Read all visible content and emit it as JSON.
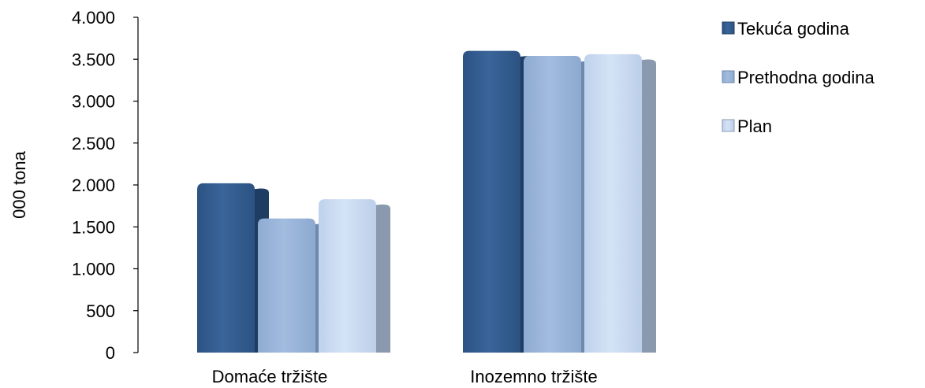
{
  "chart_data": {
    "type": "bar",
    "ylabel": "000 tona",
    "ylim": [
      0,
      4000
    ],
    "yticks": [
      0,
      500,
      1000,
      1500,
      2000,
      2500,
      3000,
      3500,
      4000
    ],
    "ytick_labels": [
      "0",
      "500",
      "1.000",
      "1.500",
      "2.000",
      "2.500",
      "3.000",
      "3.500",
      "4.000"
    ],
    "categories": [
      "Domaće tržište",
      "Inozemno tržište"
    ],
    "series": [
      {
        "name": "Tekuća godina",
        "values": [
          2020,
          3600
        ],
        "color": "#345e91"
      },
      {
        "name": "Prethodna godina",
        "values": [
          1600,
          3540
        ],
        "color": "#97b3d8"
      },
      {
        "name": "Plan",
        "values": [
          1830,
          3560
        ],
        "color": "#c7d9f0"
      }
    ],
    "grid": false,
    "legend_position": "top-right"
  }
}
